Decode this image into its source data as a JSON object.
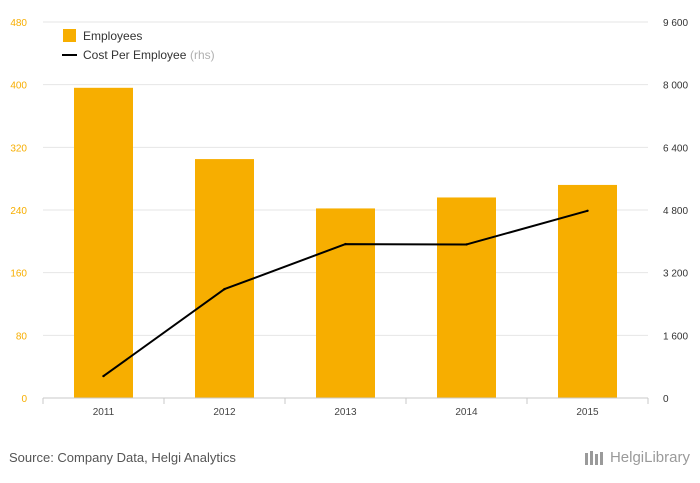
{
  "chart_data": {
    "type": "bar",
    "categories": [
      "2011",
      "2012",
      "2013",
      "2014",
      "2015"
    ],
    "series": [
      {
        "name": "Employees",
        "type": "bar",
        "axis": "left",
        "color": "#f7ae00",
        "values": [
          396,
          305,
          242,
          256,
          272
        ]
      },
      {
        "name": "Cost Per Employee",
        "name_suffix": "(rhs)",
        "type": "line",
        "axis": "right",
        "color": "#000000",
        "values": [
          560,
          2780,
          3930,
          3920,
          4780
        ]
      }
    ],
    "y_left": {
      "ylim": [
        0,
        480
      ],
      "ticks": [
        "0",
        "80",
        "160",
        "240",
        "320",
        "400",
        "480"
      ],
      "color": "#f7ae00"
    },
    "y_right": {
      "ylim": [
        0,
        9600
      ],
      "ticks": [
        "0",
        "1 600",
        "3 200",
        "4 800",
        "6 400",
        "8 000",
        "9 600"
      ]
    },
    "grid": true,
    "legend": "top-left"
  },
  "source_text": "Source: Company Data, Helgi Analytics",
  "logo_text": "HelgiLibrary"
}
